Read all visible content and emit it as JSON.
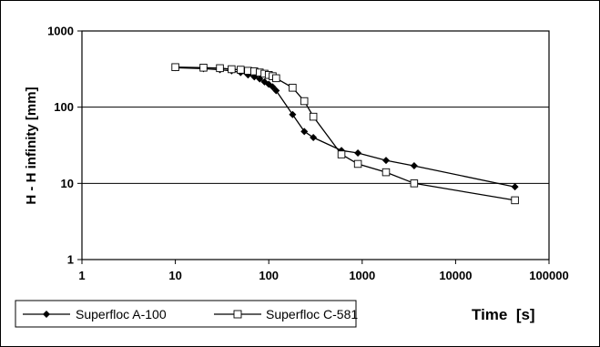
{
  "chart_data": {
    "type": "line",
    "x_scale": "log",
    "y_scale": "log",
    "xlim": [
      1,
      100000
    ],
    "ylim": [
      1,
      1000
    ],
    "x_ticks": [
      1,
      10,
      100,
      1000,
      10000,
      100000
    ],
    "y_ticks": [
      1,
      10,
      100,
      1000
    ],
    "x_tick_labels": [
      "1",
      "10",
      "100",
      "1000",
      "10000",
      "100000"
    ],
    "y_tick_labels": [
      "1",
      "10",
      "100",
      "1000"
    ],
    "xlabel": "Time  [s]",
    "ylabel": "H - H infinity [mm]",
    "grid": "horizontal major",
    "legend_position": "bottom-left, below plot",
    "series": [
      {
        "name": "Superfloc A-100",
        "marker": "filled-diamond",
        "color": "#000000",
        "x": [
          10,
          20,
          30,
          40,
          50,
          60,
          70,
          80,
          90,
          100,
          110,
          120,
          180,
          240,
          300,
          600,
          900,
          1800,
          3600,
          43200
        ],
        "y": [
          330,
          320,
          310,
          300,
          285,
          265,
          250,
          235,
          215,
          200,
          185,
          165,
          80,
          48,
          40,
          27,
          25,
          20,
          17,
          9
        ]
      },
      {
        "name": "Superfloc C-581",
        "marker": "open-square",
        "color": "#000000",
        "x": [
          10,
          20,
          30,
          40,
          50,
          60,
          70,
          80,
          90,
          100,
          110,
          120,
          180,
          240,
          300,
          600,
          900,
          1800,
          3600,
          43200
        ],
        "y": [
          335,
          330,
          325,
          315,
          310,
          300,
          295,
          285,
          275,
          265,
          255,
          240,
          180,
          120,
          75,
          24,
          18,
          14,
          10,
          6
        ]
      }
    ]
  }
}
